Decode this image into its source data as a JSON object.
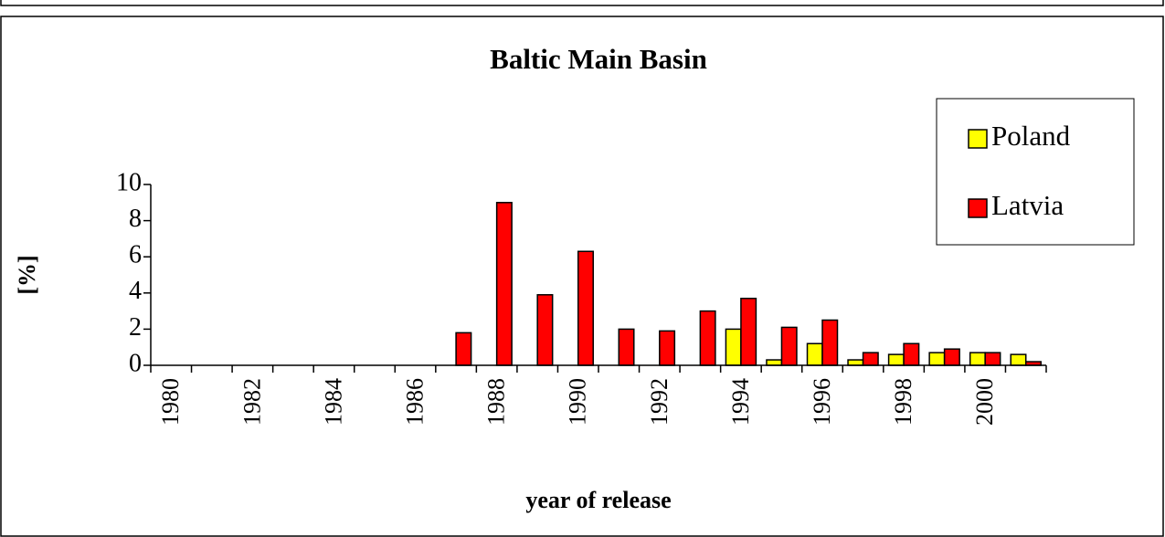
{
  "chart_data": {
    "type": "bar",
    "title": "Baltic Main Basin",
    "xlabel": "year of release",
    "ylabel": "[%]",
    "categories": [
      "1980",
      null,
      "1982",
      null,
      "1984",
      null,
      "1986",
      null,
      "1988",
      null,
      "1990",
      null,
      "1992",
      null,
      "1994",
      null,
      "1996",
      null,
      "1998",
      null,
      "2000",
      null
    ],
    "series": [
      {
        "name": "Poland",
        "color": "#ffff00",
        "values": [
          0,
          0,
          0,
          0,
          0,
          0,
          0,
          0,
          0,
          0,
          0,
          0,
          0,
          0,
          2.0,
          0.3,
          1.2,
          0.3,
          0.6,
          0.7,
          0.7,
          0.6
        ]
      },
      {
        "name": "Latvia",
        "color": "#ff0000",
        "values": [
          0,
          0,
          0,
          0,
          0,
          0,
          0,
          1.8,
          9.0,
          3.9,
          6.3,
          2.0,
          1.9,
          3.0,
          3.7,
          2.1,
          2.5,
          0.7,
          1.2,
          0.9,
          0.7,
          0.2
        ]
      }
    ],
    "ylim": [
      0,
      10
    ],
    "yticks": [
      0,
      2,
      4,
      6,
      8,
      10
    ],
    "grid": false,
    "legend": "upper right"
  }
}
